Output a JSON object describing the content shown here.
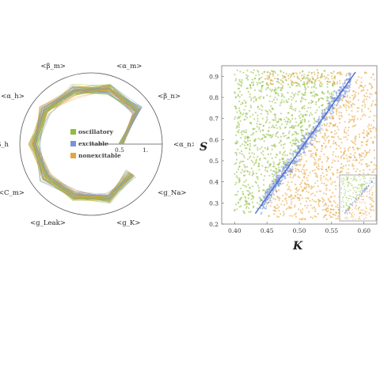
{
  "chart_data": [
    {
      "type": "radar",
      "axes": [
        "<α_n>",
        "<β_n>",
        "<α_m>",
        "<β_m>",
        "<α_h>",
        "β_h",
        "<C_m>",
        "<g_Leak>",
        "<g_K>",
        "<g_Na>"
      ],
      "radial_ticks": [
        "0.5",
        "1."
      ],
      "series": [
        {
          "name": "oscillatory",
          "color": "#8dbe3c"
        },
        {
          "name": "excitable",
          "color": "#7a93d6"
        },
        {
          "name": "nonexcitable",
          "color": "#e6a43c"
        }
      ],
      "mean_profile": [
        0.42,
        0.8,
        0.82,
        0.78,
        0.8,
        0.8,
        0.78,
        0.76,
        0.8,
        0.7
      ],
      "profile_spread": [
        0.06,
        0.12,
        0.12,
        0.12,
        0.12,
        0.12,
        0.12,
        0.12,
        0.1,
        0.12
      ]
    },
    {
      "type": "scatter",
      "xlabel": "K",
      "ylabel": "S",
      "xlim": [
        0.38,
        0.62
      ],
      "ylim": [
        0.2,
        0.95
      ],
      "xticks": [
        "0.40",
        "0.45",
        "0.50",
        "0.55",
        "0.60"
      ],
      "yticks": [
        "0.2",
        "0.3",
        "0.4",
        "0.5",
        "0.6",
        "0.7",
        "0.8",
        "0.9"
      ],
      "series": [
        {
          "name": "oscillatory",
          "color": "#8dbe3c",
          "region": {
            "x": [
              0.4,
              0.55
            ],
            "y": [
              0.25,
              0.93
            ]
          }
        },
        {
          "name": "excitable",
          "color": "#7a93d6",
          "region": {
            "x": [
              0.44,
              0.58
            ],
            "y": [
              0.27,
              0.9
            ]
          }
        },
        {
          "name": "nonexcitable",
          "color": "#e6a43c",
          "region": {
            "x": [
              0.45,
              0.62
            ],
            "y": [
              0.22,
              0.92
            ]
          }
        }
      ],
      "fit_line": {
        "x": [
          0.432,
          0.587
        ],
        "y": [
          0.25,
          0.92
        ]
      },
      "inset": {
        "present": true
      }
    }
  ]
}
